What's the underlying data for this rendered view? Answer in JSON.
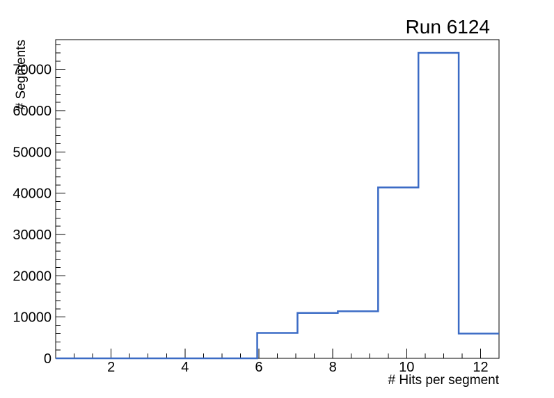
{
  "window": {
    "background_color": "#ffffff"
  },
  "colors": {
    "histogram_line": "#3b6bc5",
    "axis": "#000000",
    "text": "#000000",
    "background": "#ffffff"
  },
  "chart_data": {
    "type": "bar",
    "style": "step-histogram-outline",
    "title": "Run 6124",
    "xlabel": "# Hits per segment",
    "ylabel": "# Segments",
    "xlim": [
      0.5,
      12.5
    ],
    "ylim": [
      0,
      77200
    ],
    "grid": false,
    "legend": null,
    "bin_edges": [
      0.5,
      1.5909,
      2.6818,
      3.7727,
      4.8636,
      5.9545,
      7.0455,
      8.1364,
      9.2273,
      10.3182,
      11.4091,
      12.5
    ],
    "counts": [
      0,
      0,
      0,
      0,
      0,
      6150,
      11000,
      11400,
      41400,
      74000,
      6000
    ],
    "x_major_ticks": [
      2,
      4,
      6,
      8,
      10,
      12
    ],
    "x_tick_labels": [
      "2",
      "4",
      "6",
      "8",
      "10",
      "12"
    ],
    "x_minor_step": 0.5,
    "y_major_ticks": [
      0,
      10000,
      20000,
      30000,
      40000,
      50000,
      60000,
      70000
    ],
    "y_tick_labels": [
      "0",
      "10000",
      "20000",
      "30000",
      "40000",
      "50000",
      "60000",
      "70000"
    ],
    "y_minor_step": 2000,
    "line_width": 2.5
  }
}
